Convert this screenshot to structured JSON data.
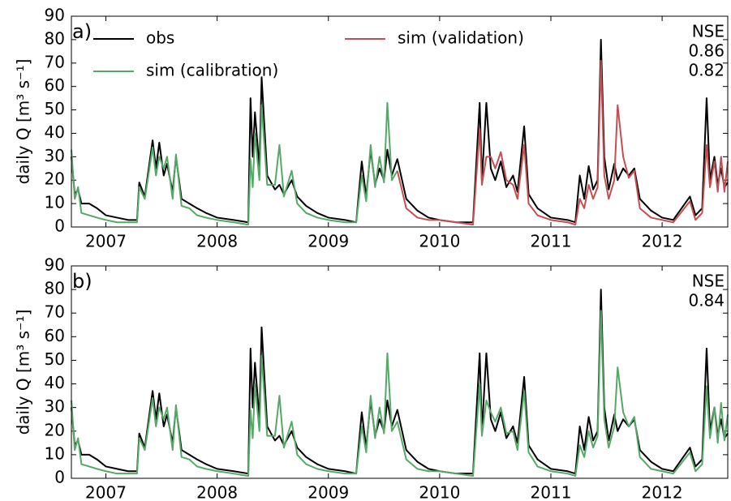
{
  "chart_data": [
    {
      "type": "line",
      "ylabel": "daily Q [m³ s⁻¹]",
      "annotations": [
        {
          "text": "a)"
        },
        {
          "text": "NSE"
        },
        {
          "text": "0.86",
          "color": "#55a868"
        },
        {
          "text": "0.82",
          "color": "#c44e52"
        }
      ],
      "legend": "upper left",
      "xlim": [
        2006.69,
        2012.59
      ],
      "xticks": [
        2007,
        2008,
        2009,
        2010,
        2011,
        2012
      ],
      "ylim": [
        0,
        90
      ],
      "yticks": [
        0,
        10,
        20,
        30,
        40,
        50,
        60,
        70,
        80,
        90
      ],
      "x": [
        2006.69,
        2006.72,
        2006.75,
        2006.78,
        2006.85,
        2006.92,
        2007.0,
        2007.1,
        2007.2,
        2007.28,
        2007.3,
        2007.35,
        2007.42,
        2007.45,
        2007.48,
        2007.52,
        2007.55,
        2007.6,
        2007.63,
        2007.68,
        2007.75,
        2007.82,
        2007.9,
        2008.0,
        2008.15,
        2008.28,
        2008.3,
        2008.32,
        2008.34,
        2008.38,
        2008.4,
        2008.45,
        2008.52,
        2008.56,
        2008.6,
        2008.67,
        2008.72,
        2008.8,
        2008.9,
        2009.0,
        2009.15,
        2009.25,
        2009.3,
        2009.34,
        2009.38,
        2009.42,
        2009.46,
        2009.5,
        2009.53,
        2009.57,
        2009.62,
        2009.7,
        2009.8,
        2009.9,
        2010.0,
        2010.15,
        2010.3,
        2010.36,
        2010.38,
        2010.42,
        2010.46,
        2010.5,
        2010.55,
        2010.6,
        2010.66,
        2010.7,
        2010.76,
        2010.8,
        2010.88,
        2011.0,
        2011.15,
        2011.22,
        2011.26,
        2011.3,
        2011.34,
        2011.38,
        2011.42,
        2011.45,
        2011.48,
        2011.52,
        2011.57,
        2011.6,
        2011.65,
        2011.7,
        2011.75,
        2011.8,
        2011.9,
        2012.0,
        2012.1,
        2012.25,
        2012.3,
        2012.36,
        2012.4,
        2012.43,
        2012.47,
        2012.5,
        2012.53,
        2012.56,
        2012.59
      ],
      "series": [
        {
          "name": "obs",
          "color": "#000000",
          "values": [
            30,
            14,
            16,
            10,
            10,
            8,
            5,
            4,
            3,
            3,
            19,
            13,
            37,
            25,
            36,
            22,
            27,
            15,
            30,
            12,
            10,
            8,
            6,
            4,
            3,
            2,
            55,
            30,
            49,
            25,
            64,
            22,
            16,
            18,
            14,
            20,
            13,
            9,
            6,
            4,
            3,
            2,
            28,
            13,
            33,
            18,
            25,
            20,
            33,
            22,
            29,
            12,
            7,
            4,
            3,
            2,
            2,
            53,
            20,
            53,
            25,
            20,
            28,
            17,
            22,
            15,
            43,
            14,
            8,
            4,
            3,
            2,
            22,
            12,
            26,
            16,
            20,
            80,
            30,
            16,
            27,
            20,
            25,
            22,
            25,
            12,
            7,
            4,
            3,
            13,
            5,
            8,
            55,
            20,
            30,
            18,
            25,
            17,
            19
          ]
        },
        {
          "name": "sim (calibration)",
          "color": "#55a868",
          "values": [
            33,
            12,
            17,
            6,
            5,
            4,
            3,
            2,
            2,
            2,
            17,
            12,
            34,
            22,
            30,
            25,
            30,
            12,
            31,
            9,
            8,
            5,
            4,
            3,
            2,
            1,
            29,
            17,
            40,
            20,
            52,
            18,
            18,
            35,
            13,
            24,
            10,
            6,
            4,
            3,
            2,
            2,
            22,
            11,
            35,
            17,
            30,
            19,
            53,
            20,
            24,
            null,
            null,
            null,
            null,
            null,
            null,
            null,
            null,
            null,
            null,
            null,
            null,
            null,
            null,
            null,
            null,
            null,
            null,
            null,
            null,
            null,
            null,
            null,
            null,
            null,
            null,
            null,
            null,
            null,
            null,
            null,
            null,
            null,
            null,
            null,
            null,
            null,
            null,
            null,
            null,
            null,
            null,
            null,
            null,
            null,
            null,
            null,
            null
          ]
        },
        {
          "name": "sim (validation)",
          "color": "#c44e52",
          "values": [
            null,
            null,
            null,
            null,
            null,
            null,
            null,
            null,
            null,
            null,
            null,
            null,
            null,
            null,
            null,
            null,
            null,
            null,
            null,
            null,
            null,
            null,
            null,
            null,
            null,
            null,
            null,
            null,
            null,
            null,
            null,
            null,
            null,
            null,
            null,
            null,
            null,
            null,
            null,
            null,
            null,
            null,
            null,
            null,
            null,
            null,
            null,
            null,
            null,
            null,
            24,
            8,
            4,
            3,
            3,
            2,
            1,
            42,
            18,
            30,
            30,
            25,
            32,
            20,
            18,
            12,
            35,
            10,
            5,
            3,
            2,
            1,
            12,
            8,
            18,
            12,
            17,
            71,
            22,
            12,
            20,
            52,
            30,
            21,
            24,
            8,
            4,
            3,
            2,
            11,
            3,
            6,
            35,
            17,
            28,
            15,
            30,
            15,
            28
          ]
        }
      ]
    },
    {
      "type": "line",
      "ylabel": "daily Q [m³ s⁻¹]",
      "annotations": [
        {
          "text": "b)"
        },
        {
          "text": "NSE"
        },
        {
          "text": "0.84",
          "color": "#55a868"
        }
      ],
      "xlim": [
        2006.69,
        2012.59
      ],
      "xticks": [
        2007,
        2008,
        2009,
        2010,
        2011,
        2012
      ],
      "ylim": [
        0,
        90
      ],
      "yticks": [
        0,
        10,
        20,
        30,
        40,
        50,
        60,
        70,
        80,
        90
      ],
      "x": [
        2006.69,
        2006.72,
        2006.75,
        2006.78,
        2006.85,
        2006.92,
        2007.0,
        2007.1,
        2007.2,
        2007.28,
        2007.3,
        2007.35,
        2007.42,
        2007.45,
        2007.48,
        2007.52,
        2007.55,
        2007.6,
        2007.63,
        2007.68,
        2007.75,
        2007.82,
        2007.9,
        2008.0,
        2008.15,
        2008.28,
        2008.3,
        2008.32,
        2008.34,
        2008.38,
        2008.4,
        2008.45,
        2008.52,
        2008.56,
        2008.6,
        2008.67,
        2008.72,
        2008.8,
        2008.9,
        2009.0,
        2009.15,
        2009.25,
        2009.3,
        2009.34,
        2009.38,
        2009.42,
        2009.46,
        2009.5,
        2009.53,
        2009.57,
        2009.62,
        2009.7,
        2009.8,
        2009.9,
        2010.0,
        2010.15,
        2010.3,
        2010.36,
        2010.38,
        2010.42,
        2010.46,
        2010.5,
        2010.55,
        2010.6,
        2010.66,
        2010.7,
        2010.76,
        2010.8,
        2010.88,
        2011.0,
        2011.15,
        2011.22,
        2011.26,
        2011.3,
        2011.34,
        2011.38,
        2011.42,
        2011.45,
        2011.48,
        2011.52,
        2011.57,
        2011.6,
        2011.65,
        2011.7,
        2011.75,
        2011.8,
        2011.9,
        2012.0,
        2012.1,
        2012.25,
        2012.3,
        2012.36,
        2012.4,
        2012.43,
        2012.47,
        2012.5,
        2012.53,
        2012.56,
        2012.59
      ],
      "series": [
        {
          "color": "#000000",
          "values": [
            30,
            14,
            16,
            10,
            10,
            8,
            5,
            4,
            3,
            3,
            19,
            13,
            37,
            25,
            36,
            22,
            27,
            15,
            30,
            12,
            10,
            8,
            6,
            4,
            3,
            2,
            55,
            30,
            49,
            25,
            64,
            22,
            16,
            18,
            14,
            20,
            13,
            9,
            6,
            4,
            3,
            2,
            28,
            13,
            33,
            18,
            25,
            20,
            33,
            22,
            29,
            12,
            7,
            4,
            3,
            2,
            2,
            53,
            20,
            53,
            25,
            20,
            28,
            17,
            22,
            15,
            43,
            14,
            8,
            4,
            3,
            2,
            22,
            12,
            26,
            16,
            20,
            80,
            30,
            16,
            27,
            20,
            25,
            22,
            25,
            12,
            7,
            4,
            3,
            13,
            5,
            8,
            55,
            20,
            30,
            18,
            25,
            17,
            19
          ]
        },
        {
          "color": "#55a868",
          "values": [
            33,
            12,
            17,
            6,
            5,
            4,
            3,
            2,
            2,
            2,
            17,
            12,
            34,
            22,
            30,
            25,
            30,
            12,
            31,
            9,
            8,
            5,
            4,
            3,
            2,
            1,
            29,
            17,
            40,
            20,
            52,
            18,
            18,
            35,
            13,
            24,
            10,
            6,
            4,
            3,
            2,
            2,
            22,
            11,
            35,
            17,
            30,
            19,
            53,
            20,
            24,
            8,
            4,
            3,
            3,
            2,
            1,
            40,
            18,
            33,
            28,
            24,
            30,
            19,
            20,
            12,
            37,
            11,
            5,
            3,
            2,
            1,
            14,
            9,
            20,
            13,
            18,
            71,
            25,
            13,
            22,
            47,
            28,
            22,
            26,
            9,
            4,
            3,
            2,
            11,
            3,
            6,
            39,
            17,
            30,
            15,
            32,
            16,
            27
          ]
        }
      ]
    }
  ]
}
